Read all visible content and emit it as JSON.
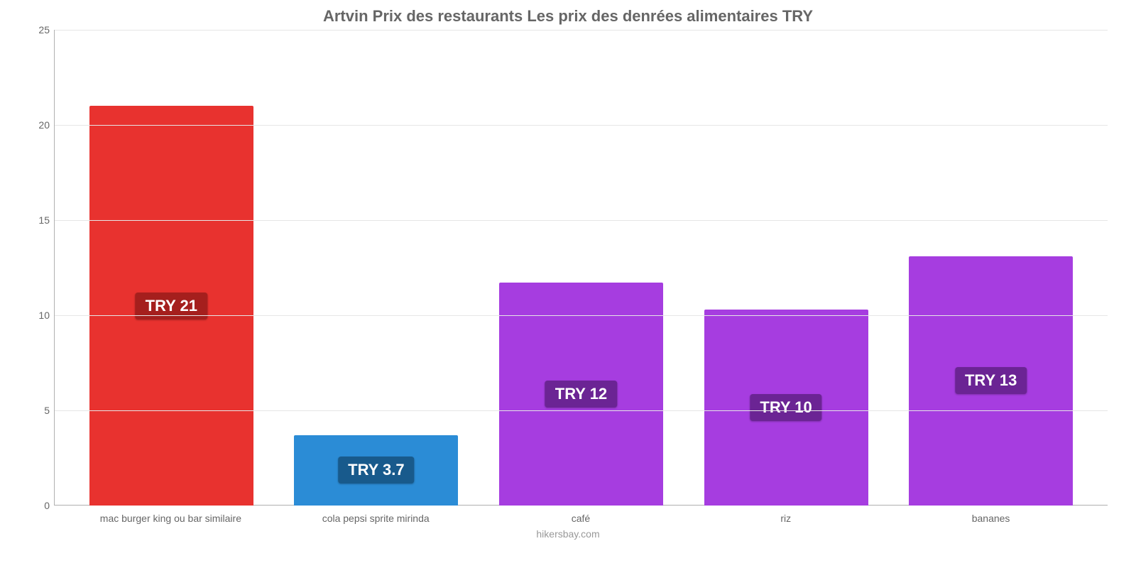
{
  "chart": {
    "type": "bar",
    "title": "Artvin Prix des restaurants Les prix des denrées alimentaires TRY",
    "title_fontsize": 22,
    "title_color": "#666666",
    "source": "hikersbay.com",
    "source_color": "#999999",
    "background_color": "#ffffff",
    "grid_color": "#e6e6e6",
    "axis_color": "#b0b0b0",
    "tick_label_color": "#666666",
    "tick_label_fontsize": 14,
    "value_label_fontsize": 22,
    "ylim": [
      0,
      25
    ],
    "ytick_step": 5,
    "yticks": [
      0,
      5,
      10,
      15,
      20,
      25
    ],
    "bar_width_pct": 80,
    "categories": [
      "mac burger king ou bar similaire",
      "cola pepsi sprite mirinda",
      "café",
      "riz",
      "bananes"
    ],
    "values": [
      21,
      3.7,
      11.7,
      10.3,
      13.1
    ],
    "value_labels": [
      "TRY 21",
      "TRY 3.7",
      "TRY 12",
      "TRY 10",
      "TRY 13"
    ],
    "bar_colors": [
      "#e8322f",
      "#2b8cd6",
      "#a63de0",
      "#a63de0",
      "#a63de0"
    ],
    "badge_colors": [
      "#a51f1d",
      "#185a8c",
      "#6b2494",
      "#6b2494",
      "#6b2494"
    ]
  }
}
